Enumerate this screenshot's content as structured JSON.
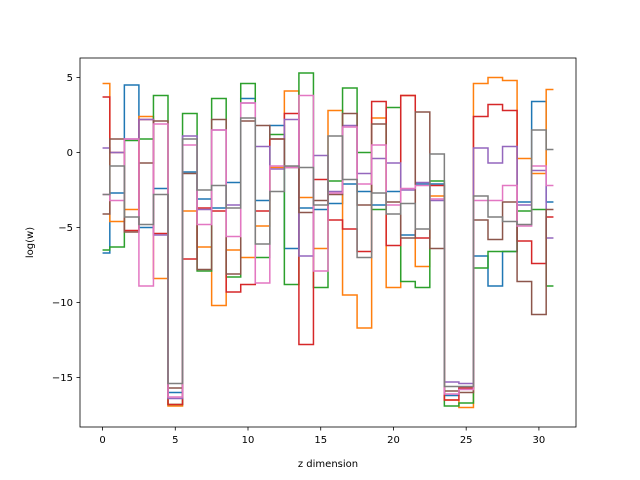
{
  "chart_data": {
    "type": "line",
    "drawstyle": "steps-mid",
    "title": "",
    "xlabel": "z dimension",
    "ylabel": "log(w)",
    "xlim": [
      -1.55,
      32.55
    ],
    "ylim": [
      -18.3,
      6.3
    ],
    "xticks": [
      0,
      5,
      10,
      15,
      20,
      25,
      30
    ],
    "yticks": [
      -15,
      -10,
      -5,
      0,
      5
    ],
    "ytick_labels": [
      "−15",
      "−10",
      "−5",
      "0",
      "5"
    ],
    "grid": false,
    "legend": false,
    "x": [
      0,
      1,
      2,
      3,
      4,
      5,
      6,
      7,
      8,
      9,
      10,
      11,
      12,
      13,
      14,
      15,
      16,
      17,
      18,
      19,
      20,
      21,
      22,
      23,
      24,
      25,
      26,
      27,
      28,
      29,
      30,
      31
    ],
    "series": [
      {
        "color": "#1f77b4",
        "values": [
          -6.7,
          -2.7,
          4.5,
          -5.0,
          -2.4,
          -16.0,
          -1.3,
          -3.1,
          -3.7,
          -2.0,
          3.6,
          -3.2,
          1.8,
          -6.4,
          -3.7,
          -3.8,
          -3.4,
          -2.1,
          -2.6,
          -3.5,
          -2.6,
          -5.5,
          -2.1,
          -2.1,
          -16.2,
          -15.7,
          -6.9,
          -8.9,
          -6.6,
          -3.3,
          3.4,
          -3.3
        ]
      },
      {
        "color": "#ff7f0e",
        "values": [
          4.6,
          -4.6,
          -3.8,
          2.4,
          -8.4,
          -16.9,
          -3.9,
          -6.3,
          -10.2,
          -6.5,
          -7.0,
          -4.9,
          -1.0,
          4.1,
          -3.0,
          -6.4,
          2.8,
          -9.5,
          -11.7,
          2.3,
          -9.0,
          3.8,
          -7.6,
          -2.9,
          -16.5,
          -17.0,
          4.6,
          5.0,
          4.8,
          -0.4,
          -1.4,
          4.2
        ]
      },
      {
        "color": "#2ca02c",
        "values": [
          -6.5,
          -6.3,
          0.8,
          0.9,
          3.8,
          -16.8,
          2.6,
          -7.9,
          3.6,
          -8.3,
          4.6,
          -7.0,
          1.2,
          -8.8,
          5.3,
          -9.0,
          -1.9,
          4.3,
          0.0,
          -3.8,
          3.0,
          -8.6,
          -9.0,
          -1.9,
          -16.9,
          -16.7,
          -7.7,
          -6.6,
          -6.6,
          -3.9,
          -3.8,
          -8.9
        ]
      },
      {
        "color": "#d62728",
        "values": [
          3.7,
          0.0,
          -5.2,
          2.2,
          -5.4,
          -16.8,
          -7.1,
          -3.7,
          -3.9,
          -9.3,
          -8.8,
          -3.9,
          0.9,
          2.6,
          -12.8,
          -1.8,
          -4.5,
          -5.1,
          -6.6,
          3.4,
          -6.2,
          3.8,
          -5.7,
          -2.2,
          -16.5,
          -15.7,
          2.4,
          3.2,
          2.8,
          -5.9,
          -7.4,
          -4.3
        ]
      },
      {
        "color": "#9467bd",
        "values": [
          0.3,
          0.0,
          0.9,
          2.2,
          -5.5,
          -16.4,
          1.1,
          -3.8,
          1.5,
          -3.5,
          3.3,
          0.4,
          -1.1,
          2.2,
          -6.9,
          -0.2,
          -2.6,
          1.8,
          -1.4,
          -0.4,
          -0.7,
          -2.5,
          -2.0,
          -3.2,
          -15.3,
          -15.4,
          0.3,
          -0.7,
          0.4,
          -3.5,
          -1.2,
          -5.7
        ]
      },
      {
        "color": "#8c564b",
        "values": [
          -4.1,
          0.9,
          -5.3,
          -0.7,
          2.1,
          -15.7,
          -1.4,
          -7.8,
          2.2,
          -8.1,
          2.1,
          1.8,
          0.9,
          -1.0,
          -4.0,
          -3.2,
          -2.8,
          2.6,
          -3.5,
          1.9,
          -3.3,
          -5.7,
          2.7,
          -6.4,
          -15.9,
          -16.0,
          -4.5,
          -5.8,
          -3.3,
          -8.6,
          -10.8,
          -3.8
        ]
      },
      {
        "color": "#e377c2",
        "values": [
          -2.8,
          -3.2,
          0.9,
          -8.9,
          1.9,
          -16.3,
          0.5,
          -4.8,
          1.5,
          -5.6,
          3.3,
          -8.7,
          -0.9,
          -1.0,
          3.8,
          -7.9,
          -2.7,
          1.7,
          -2.1,
          0.5,
          -3.5,
          -2.4,
          -2.2,
          -3.1,
          -16.1,
          -15.8,
          -3.2,
          -3.2,
          -2.2,
          -4.9,
          -0.9,
          -2.2
        ]
      },
      {
        "color": "#7f7f7f",
        "values": [
          -2.8,
          -0.9,
          -4.3,
          -4.8,
          -2.8,
          -15.4,
          0.9,
          -2.5,
          -2.2,
          -3.7,
          2.3,
          -6.1,
          -2.6,
          -0.9,
          -1.0,
          -3.5,
          1.1,
          -1.8,
          -7.0,
          -2.7,
          -4.1,
          -3.4,
          -5.1,
          -0.1,
          -15.6,
          -15.6,
          -2.9,
          -4.3,
          -4.6,
          -4.8,
          1.5,
          0.2
        ]
      }
    ]
  }
}
